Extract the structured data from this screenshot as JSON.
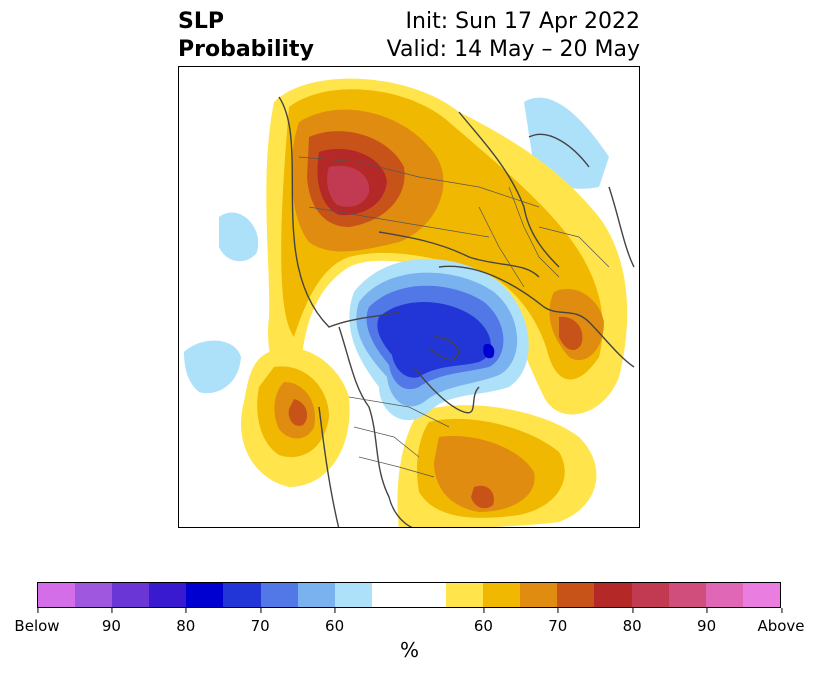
{
  "header": {
    "title_line1": "SLP",
    "title_line2": "Probability",
    "init": "Init: Sun 17 Apr 2022",
    "valid": "Valid: 14 May – 20 May"
  },
  "colorbar": {
    "colors": [
      "#d46ee8",
      "#a057e0",
      "#6a37d6",
      "#3a1ad0",
      "#0000d0",
      "#2236d8",
      "#5277e6",
      "#7ab2f0",
      "#ade0f9",
      "#ffffff",
      "#ffe44c",
      "#f0b800",
      "#e08c10",
      "#c85318",
      "#b42828",
      "#c23a52",
      "#d04e7c",
      "#e066b6",
      "#ea7ee0"
    ],
    "tick_labels": [
      "Below",
      "90",
      "80",
      "70",
      "60",
      "60",
      "70",
      "80",
      "90",
      "Above"
    ],
    "unit": "%"
  },
  "map": {
    "projection": "north-polar-stereographic",
    "variable": "sea-level-pressure-probability",
    "regions": [
      {
        "name": "north-eurasia-above",
        "category": "above",
        "peak": "90"
      },
      {
        "name": "north-pacific-above",
        "category": "above",
        "peak": "75"
      },
      {
        "name": "north-atlantic-above",
        "category": "above",
        "peak": "75"
      },
      {
        "name": "arctic-canada-below",
        "category": "below",
        "peak": "80"
      },
      {
        "name": "east-asia-above",
        "category": "above",
        "peak": "75"
      }
    ]
  }
}
